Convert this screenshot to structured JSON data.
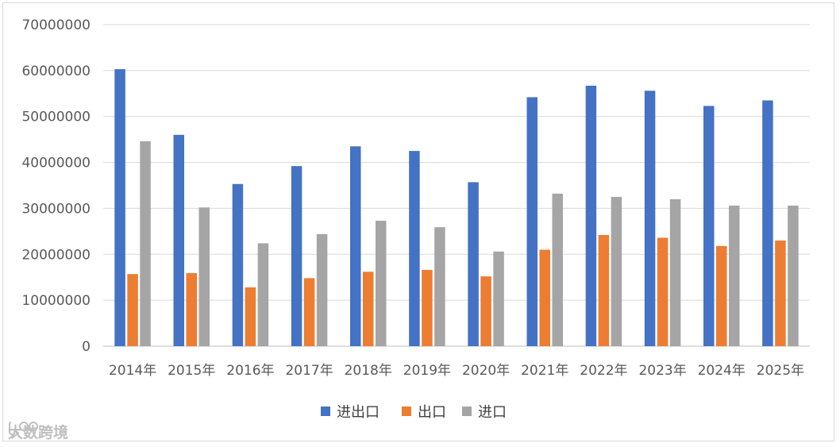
{
  "chart_data": {
    "type": "bar",
    "title": "",
    "xlabel": "",
    "ylabel": "",
    "categories": [
      "2014年",
      "2015年",
      "2016年",
      "2017年",
      "2018年",
      "2019年",
      "2020年",
      "2021年",
      "2022年",
      "2023年",
      "2024年",
      "2025年"
    ],
    "series": [
      {
        "name": "进出口",
        "color": "#4472c4",
        "values": [
          60300000,
          46000000,
          35300000,
          39200000,
          43500000,
          42500000,
          35700000,
          54200000,
          56700000,
          55600000,
          52300000,
          53500000
        ]
      },
      {
        "name": "出口",
        "color": "#ed7d31",
        "values": [
          15700000,
          15900000,
          12800000,
          14800000,
          16200000,
          16600000,
          15200000,
          21000000,
          24200000,
          23600000,
          21800000,
          23000000
        ]
      },
      {
        "name": "进口",
        "color": "#a5a5a5",
        "values": [
          44600000,
          30200000,
          22400000,
          24400000,
          27300000,
          25900000,
          20600000,
          33200000,
          32500000,
          32000000,
          30600000,
          30600000
        ]
      }
    ],
    "ylim": [
      0,
      70000000
    ],
    "yticks": [
      0,
      10000000,
      20000000,
      30000000,
      40000000,
      50000000,
      60000000,
      70000000
    ],
    "grid": true,
    "legend_position": "bottom"
  },
  "watermark": {
    "text": "大数跨境",
    "icon": "speech-bubble-logo-icon"
  }
}
